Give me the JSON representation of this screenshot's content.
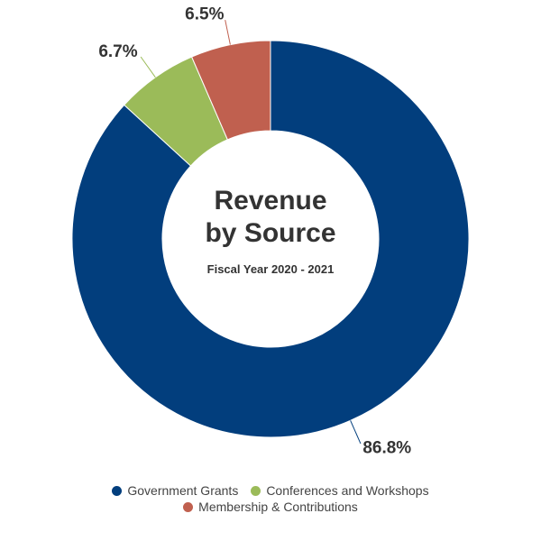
{
  "chart_data": {
    "type": "donut",
    "title": "Revenue by Source",
    "subtitle": "Fiscal Year 2020 - 2021",
    "categories": [
      "Government Grants",
      "Conferences and Workshops",
      "Membership & Contributions"
    ],
    "values": [
      86.8,
      6.7,
      6.5
    ],
    "value_labels": [
      "86.8%",
      "6.7%",
      "6.5%"
    ],
    "colors": [
      "#023e7d",
      "#9bbb59",
      "#c0604f"
    ]
  }
}
